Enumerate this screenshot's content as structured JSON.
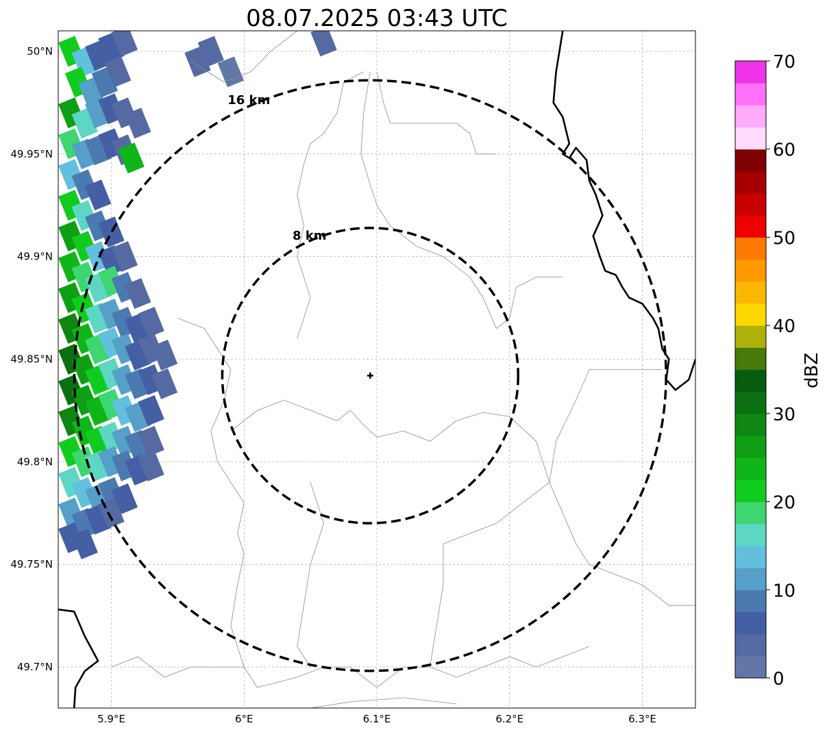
{
  "title": "08.07.2025 03:43 UTC",
  "map": {
    "lon_range": [
      5.86,
      6.34
    ],
    "lat_range": [
      49.68,
      50.01
    ],
    "radar_site": {
      "lon": 6.095,
      "lat": 49.842
    },
    "gridlines": true,
    "lon_ticks": [
      {
        "value": 5.9,
        "label": "5.9°E"
      },
      {
        "value": 6.0,
        "label": "6°E"
      },
      {
        "value": 6.1,
        "label": "6.1°E"
      },
      {
        "value": 6.2,
        "label": "6.2°E"
      },
      {
        "value": 6.3,
        "label": "6.3°E"
      }
    ],
    "lat_ticks": [
      {
        "value": 50.0,
        "label": "50°N"
      },
      {
        "value": 49.95,
        "label": "49.95°N"
      },
      {
        "value": 49.9,
        "label": "49.9°N"
      },
      {
        "value": 49.85,
        "label": "49.85°N"
      },
      {
        "value": 49.8,
        "label": "49.8°N"
      },
      {
        "value": 49.75,
        "label": "49.75°N"
      },
      {
        "value": 49.7,
        "label": "49.7°N"
      }
    ],
    "range_rings": [
      {
        "radius_km": 8,
        "label": "8 km"
      },
      {
        "radius_km": 16,
        "label": "16 km"
      }
    ],
    "country_borders": [
      [
        [
          6.24,
          50.01
        ],
        [
          6.235,
          49.99
        ],
        [
          6.233,
          49.975
        ],
        [
          6.24,
          49.968
        ],
        [
          6.245,
          49.955
        ],
        [
          6.24,
          49.95
        ],
        [
          6.245,
          49.948
        ],
        [
          6.25,
          49.953
        ],
        [
          6.258,
          49.947
        ],
        [
          6.26,
          49.937
        ],
        [
          6.265,
          49.93
        ],
        [
          6.27,
          49.92
        ],
        [
          6.263,
          49.91
        ],
        [
          6.268,
          49.9
        ],
        [
          6.272,
          49.893
        ],
        [
          6.28,
          49.891
        ],
        [
          6.285,
          49.885
        ],
        [
          6.29,
          49.88
        ],
        [
          6.3,
          49.877
        ],
        [
          6.308,
          49.87
        ],
        [
          6.312,
          49.865
        ],
        [
          6.315,
          49.855
        ],
        [
          6.32,
          49.85
        ],
        [
          6.318,
          49.84
        ],
        [
          6.325,
          49.835
        ],
        [
          6.335,
          49.84
        ],
        [
          6.34,
          49.85
        ]
      ],
      [
        [
          5.86,
          49.728
        ],
        [
          5.872,
          49.727
        ],
        [
          5.88,
          49.715
        ],
        [
          5.89,
          49.703
        ],
        [
          5.88,
          49.698
        ],
        [
          5.873,
          49.69
        ],
        [
          5.872,
          49.68
        ]
      ]
    ],
    "admin_boundaries": [
      [
        [
          5.96,
          49.995
        ],
        [
          5.985,
          49.985
        ],
        [
          6.005,
          49.99
        ],
        [
          6.02,
          50.0
        ],
        [
          6.04,
          50.01
        ]
      ],
      [
        [
          6.09,
          49.99
        ],
        [
          6.075,
          49.985
        ],
        [
          6.07,
          49.97
        ],
        [
          6.06,
          49.96
        ],
        [
          6.05,
          49.955
        ],
        [
          6.045,
          49.945
        ],
        [
          6.04,
          49.93
        ],
        [
          6.045,
          49.915
        ],
        [
          6.04,
          49.9
        ],
        [
          6.045,
          49.89
        ],
        [
          6.05,
          49.88
        ],
        [
          6.045,
          49.87
        ],
        [
          6.04,
          49.86
        ]
      ],
      [
        [
          6.1,
          49.99
        ],
        [
          6.105,
          49.975
        ],
        [
          6.11,
          49.965
        ],
        [
          6.14,
          49.965
        ],
        [
          6.16,
          49.965
        ],
        [
          6.17,
          49.96
        ],
        [
          6.175,
          49.95
        ],
        [
          6.19,
          49.95
        ]
      ],
      [
        [
          6.095,
          49.99
        ],
        [
          6.09,
          49.97
        ],
        [
          6.088,
          49.95
        ],
        [
          6.095,
          49.935
        ],
        [
          6.1,
          49.925
        ],
        [
          6.11,
          49.915
        ],
        [
          6.13,
          49.905
        ],
        [
          6.15,
          49.9
        ],
        [
          6.17,
          49.89
        ],
        [
          6.18,
          49.88
        ],
        [
          6.19,
          49.865
        ],
        [
          6.2,
          49.87
        ],
        [
          6.205,
          49.885
        ],
        [
          6.22,
          49.89
        ],
        [
          6.24,
          49.89
        ]
      ],
      [
        [
          5.95,
          49.87
        ],
        [
          5.97,
          49.865
        ],
        [
          5.98,
          49.855
        ],
        [
          5.99,
          49.845
        ],
        [
          5.985,
          49.83
        ],
        [
          5.975,
          49.815
        ],
        [
          5.98,
          49.8
        ],
        [
          5.99,
          49.79
        ]
      ],
      [
        [
          5.99,
          49.815
        ],
        [
          6.01,
          49.825
        ],
        [
          6.03,
          49.83
        ],
        [
          6.05,
          49.825
        ],
        [
          6.07,
          49.82
        ],
        [
          6.08,
          49.825
        ],
        [
          6.09,
          49.818
        ],
        [
          6.1,
          49.812
        ],
        [
          6.12,
          49.815
        ],
        [
          6.14,
          49.81
        ],
        [
          6.16,
          49.82
        ],
        [
          6.18,
          49.824
        ],
        [
          6.2,
          49.822
        ],
        [
          6.22,
          49.81
        ],
        [
          6.23,
          49.79
        ]
      ],
      [
        [
          6.23,
          49.79
        ],
        [
          6.24,
          49.775
        ],
        [
          6.25,
          49.76
        ],
        [
          6.26,
          49.75
        ],
        [
          6.28,
          49.745
        ],
        [
          6.3,
          49.74
        ],
        [
          6.32,
          49.73
        ],
        [
          6.34,
          49.73
        ]
      ],
      [
        [
          6.23,
          49.79
        ],
        [
          6.235,
          49.81
        ],
        [
          6.25,
          49.83
        ],
        [
          6.26,
          49.845
        ],
        [
          6.28,
          49.845
        ],
        [
          6.3,
          49.845
        ],
        [
          6.315,
          49.845
        ]
      ],
      [
        [
          5.99,
          49.79
        ],
        [
          6.0,
          49.78
        ],
        [
          5.995,
          49.765
        ],
        [
          6.0,
          49.755
        ],
        [
          5.995,
          49.74
        ],
        [
          5.99,
          49.72
        ],
        [
          6.0,
          49.7
        ],
        [
          6.01,
          49.69
        ],
        [
          6.04,
          49.695
        ],
        [
          6.06,
          49.7
        ],
        [
          6.08,
          49.7
        ],
        [
          6.1,
          49.69
        ],
        [
          6.12,
          49.7
        ],
        [
          6.14,
          49.7
        ],
        [
          6.16,
          49.695
        ],
        [
          6.18,
          49.7
        ],
        [
          6.2,
          49.705
        ],
        [
          6.22,
          49.7
        ],
        [
          6.24,
          49.705
        ],
        [
          6.26,
          49.71
        ]
      ],
      [
        [
          6.05,
          49.79
        ],
        [
          6.06,
          49.77
        ],
        [
          6.05,
          49.75
        ],
        [
          6.045,
          49.73
        ],
        [
          6.04,
          49.71
        ],
        [
          6.05,
          49.7
        ]
      ],
      [
        [
          5.9,
          49.7
        ],
        [
          5.92,
          49.705
        ],
        [
          5.94,
          49.695
        ],
        [
          5.96,
          49.7
        ],
        [
          5.98,
          49.7
        ],
        [
          6.0,
          49.7
        ]
      ],
      [
        [
          6.15,
          49.76
        ],
        [
          6.17,
          49.765
        ],
        [
          6.19,
          49.77
        ],
        [
          6.21,
          49.78
        ],
        [
          6.23,
          49.79
        ]
      ],
      [
        [
          6.14,
          49.7
        ],
        [
          6.145,
          49.72
        ],
        [
          6.15,
          49.74
        ],
        [
          6.15,
          49.76
        ]
      ],
      [
        [
          6.05,
          49.68
        ],
        [
          6.08,
          49.683
        ],
        [
          6.12,
          49.685
        ],
        [
          6.16,
          49.682
        ]
      ]
    ]
  },
  "reflectivity_cells": [
    {
      "lon": 5.87,
      "lat": 50.0,
      "dbz": 22
    },
    {
      "lon": 5.88,
      "lat": 49.995,
      "dbz": 14
    },
    {
      "lon": 5.89,
      "lat": 49.998,
      "dbz": 6
    },
    {
      "lon": 5.9,
      "lat": 50.002,
      "dbz": 5
    },
    {
      "lon": 5.91,
      "lat": 50.005,
      "dbz": 3
    },
    {
      "lon": 5.875,
      "lat": 49.985,
      "dbz": 20
    },
    {
      "lon": 5.885,
      "lat": 49.98,
      "dbz": 12
    },
    {
      "lon": 5.895,
      "lat": 49.985,
      "dbz": 9
    },
    {
      "lon": 5.905,
      "lat": 49.99,
      "dbz": 4
    },
    {
      "lon": 5.87,
      "lat": 49.97,
      "dbz": 26
    },
    {
      "lon": 5.88,
      "lat": 49.965,
      "dbz": 17
    },
    {
      "lon": 5.89,
      "lat": 49.97,
      "dbz": 11
    },
    {
      "lon": 5.9,
      "lat": 49.972,
      "dbz": 7
    },
    {
      "lon": 5.91,
      "lat": 49.97,
      "dbz": 4
    },
    {
      "lon": 5.92,
      "lat": 49.965,
      "dbz": 3
    },
    {
      "lon": 5.87,
      "lat": 49.955,
      "dbz": 18
    },
    {
      "lon": 5.88,
      "lat": 49.95,
      "dbz": 12
    },
    {
      "lon": 5.89,
      "lat": 49.952,
      "dbz": 9
    },
    {
      "lon": 5.9,
      "lat": 49.955,
      "dbz": 6
    },
    {
      "lon": 5.91,
      "lat": 49.952,
      "dbz": 4
    },
    {
      "lon": 5.87,
      "lat": 49.94,
      "dbz": 14
    },
    {
      "lon": 5.88,
      "lat": 49.935,
      "dbz": 8
    },
    {
      "lon": 5.89,
      "lat": 49.93,
      "dbz": 5
    },
    {
      "lon": 5.87,
      "lat": 49.925,
      "dbz": 22
    },
    {
      "lon": 5.88,
      "lat": 49.92,
      "dbz": 16
    },
    {
      "lon": 5.89,
      "lat": 49.915,
      "dbz": 9
    },
    {
      "lon": 5.9,
      "lat": 49.912,
      "dbz": 5
    },
    {
      "lon": 5.87,
      "lat": 49.91,
      "dbz": 27
    },
    {
      "lon": 5.88,
      "lat": 49.905,
      "dbz": 21
    },
    {
      "lon": 5.89,
      "lat": 49.9,
      "dbz": 13
    },
    {
      "lon": 5.9,
      "lat": 49.898,
      "dbz": 7
    },
    {
      "lon": 5.91,
      "lat": 49.9,
      "dbz": 4
    },
    {
      "lon": 5.87,
      "lat": 49.895,
      "dbz": 24
    },
    {
      "lon": 5.88,
      "lat": 49.89,
      "dbz": 18
    },
    {
      "lon": 5.89,
      "lat": 49.885,
      "dbz": 15
    },
    {
      "lon": 5.9,
      "lat": 49.888,
      "dbz": 19
    },
    {
      "lon": 5.91,
      "lat": 49.885,
      "dbz": 9
    },
    {
      "lon": 5.92,
      "lat": 49.882,
      "dbz": 4
    },
    {
      "lon": 5.87,
      "lat": 49.88,
      "dbz": 26
    },
    {
      "lon": 5.88,
      "lat": 49.875,
      "dbz": 22
    },
    {
      "lon": 5.89,
      "lat": 49.87,
      "dbz": 16
    },
    {
      "lon": 5.9,
      "lat": 49.872,
      "dbz": 12
    },
    {
      "lon": 5.91,
      "lat": 49.868,
      "dbz": 8
    },
    {
      "lon": 5.92,
      "lat": 49.865,
      "dbz": 5
    },
    {
      "lon": 5.93,
      "lat": 49.868,
      "dbz": 3
    },
    {
      "lon": 5.87,
      "lat": 49.865,
      "dbz": 28
    },
    {
      "lon": 5.88,
      "lat": 49.86,
      "dbz": 24
    },
    {
      "lon": 5.89,
      "lat": 49.855,
      "dbz": 18
    },
    {
      "lon": 5.9,
      "lat": 49.858,
      "dbz": 14
    },
    {
      "lon": 5.91,
      "lat": 49.855,
      "dbz": 11
    },
    {
      "lon": 5.92,
      "lat": 49.852,
      "dbz": 7
    },
    {
      "lon": 5.93,
      "lat": 49.855,
      "dbz": 4
    },
    {
      "lon": 5.94,
      "lat": 49.852,
      "dbz": 3
    },
    {
      "lon": 5.87,
      "lat": 49.85,
      "dbz": 30
    },
    {
      "lon": 5.88,
      "lat": 49.845,
      "dbz": 26
    },
    {
      "lon": 5.89,
      "lat": 49.84,
      "dbz": 21
    },
    {
      "lon": 5.9,
      "lat": 49.843,
      "dbz": 16
    },
    {
      "lon": 5.91,
      "lat": 49.84,
      "dbz": 12
    },
    {
      "lon": 5.92,
      "lat": 49.838,
      "dbz": 8
    },
    {
      "lon": 5.93,
      "lat": 49.84,
      "dbz": 5
    },
    {
      "lon": 5.94,
      "lat": 49.838,
      "dbz": 3
    },
    {
      "lon": 5.87,
      "lat": 49.835,
      "dbz": 31
    },
    {
      "lon": 5.88,
      "lat": 49.83,
      "dbz": 27
    },
    {
      "lon": 5.89,
      "lat": 49.825,
      "dbz": 23
    },
    {
      "lon": 5.9,
      "lat": 49.828,
      "dbz": 18
    },
    {
      "lon": 5.91,
      "lat": 49.825,
      "dbz": 14
    },
    {
      "lon": 5.92,
      "lat": 49.822,
      "dbz": 10
    },
    {
      "lon": 5.93,
      "lat": 49.825,
      "dbz": 6
    },
    {
      "lon": 5.87,
      "lat": 49.82,
      "dbz": 28
    },
    {
      "lon": 5.88,
      "lat": 49.815,
      "dbz": 24
    },
    {
      "lon": 5.89,
      "lat": 49.81,
      "dbz": 20
    },
    {
      "lon": 5.9,
      "lat": 49.812,
      "dbz": 17
    },
    {
      "lon": 5.91,
      "lat": 49.81,
      "dbz": 12
    },
    {
      "lon": 5.92,
      "lat": 49.808,
      "dbz": 8
    },
    {
      "lon": 5.93,
      "lat": 49.81,
      "dbz": 4
    },
    {
      "lon": 5.87,
      "lat": 49.805,
      "dbz": 22
    },
    {
      "lon": 5.88,
      "lat": 49.8,
      "dbz": 19
    },
    {
      "lon": 5.89,
      "lat": 49.798,
      "dbz": 16
    },
    {
      "lon": 5.9,
      "lat": 49.8,
      "dbz": 12
    },
    {
      "lon": 5.91,
      "lat": 49.798,
      "dbz": 8
    },
    {
      "lon": 5.92,
      "lat": 49.796,
      "dbz": 5
    },
    {
      "lon": 5.93,
      "lat": 49.798,
      "dbz": 3
    },
    {
      "lon": 5.87,
      "lat": 49.79,
      "dbz": 15
    },
    {
      "lon": 5.88,
      "lat": 49.785,
      "dbz": 13
    },
    {
      "lon": 5.89,
      "lat": 49.782,
      "dbz": 11
    },
    {
      "lon": 5.9,
      "lat": 49.785,
      "dbz": 8
    },
    {
      "lon": 5.91,
      "lat": 49.782,
      "dbz": 5
    },
    {
      "lon": 5.87,
      "lat": 49.775,
      "dbz": 11
    },
    {
      "lon": 5.88,
      "lat": 49.77,
      "dbz": 9
    },
    {
      "lon": 5.89,
      "lat": 49.772,
      "dbz": 6
    },
    {
      "lon": 5.9,
      "lat": 49.775,
      "dbz": 4
    },
    {
      "lon": 5.87,
      "lat": 49.763,
      "dbz": 7
    },
    {
      "lon": 5.88,
      "lat": 49.76,
      "dbz": 5
    },
    {
      "lon": 5.965,
      "lat": 49.995,
      "dbz": 4
    },
    {
      "lon": 5.975,
      "lat": 50.0,
      "dbz": 3
    },
    {
      "lon": 6.06,
      "lat": 50.005,
      "dbz": 3
    },
    {
      "lon": 5.99,
      "lat": 49.99,
      "dbz": 2
    },
    {
      "lon": 5.915,
      "lat": 49.948,
      "dbz": 24
    }
  ],
  "colorbar": {
    "label": "dBZ",
    "min": 0,
    "max": 70,
    "ticks": [
      0,
      10,
      20,
      30,
      40,
      50,
      60,
      70
    ],
    "colors": [
      "#6376a8",
      "#556aa3",
      "#445fa3",
      "#4b7ab1",
      "#569fc8",
      "#62c0de",
      "#5ed6c4",
      "#3dd670",
      "#10cc1e",
      "#10b519",
      "#0e9f15",
      "#0d8612",
      "#0a7012",
      "#055c0e",
      "#477a0b",
      "#aeb10a",
      "#fdd800",
      "#fcb800",
      "#fe9a00",
      "#ff7a00",
      "#ec0000",
      "#c80000",
      "#a60000",
      "#7e0000",
      "#ffdcff",
      "#ffaafc",
      "#ff70fb",
      "#f033e8"
    ]
  }
}
